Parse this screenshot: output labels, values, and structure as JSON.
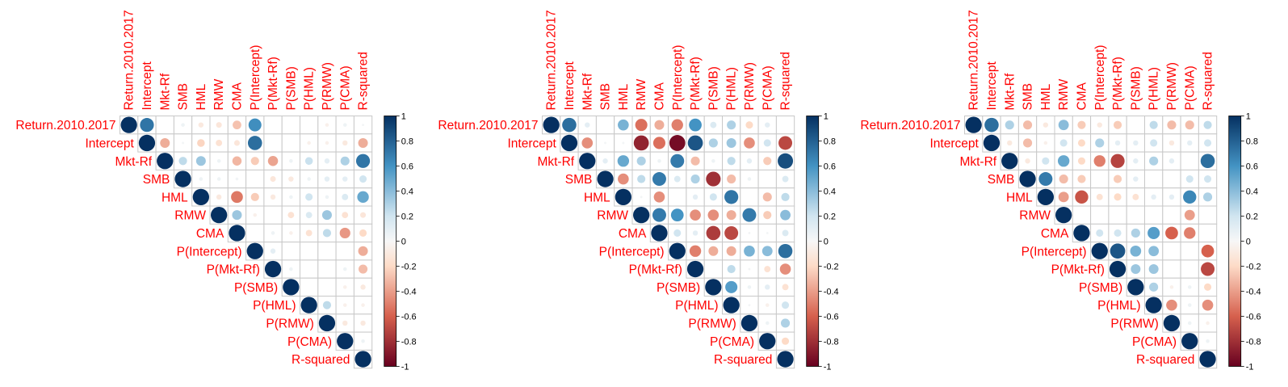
{
  "colorbar": {
    "ticks": [
      "1",
      "0.8",
      "0.6",
      "0.4",
      "0.2",
      "0",
      "-0.2",
      "-0.4",
      "-0.6",
      "-0.8",
      "-1"
    ],
    "colors": {
      "neg_end": "#67001f",
      "neg_mid": "#d6604d",
      "neg_light": "#fddbc7",
      "zero": "#f7f7f7",
      "pos_light": "#d1e5f0",
      "pos_mid": "#4393c3",
      "pos_end": "#053061"
    }
  },
  "label_color": "#ff0000",
  "chart_data": [
    {
      "type": "heatmap",
      "variables": [
        "Return.2010.2017",
        "Intercept",
        "Mkt-Rf",
        "SMB",
        "HML",
        "RMW",
        "CMA",
        "P(Intercept)",
        "P(Mkt-Rf)",
        "P(SMB)",
        "P(HML)",
        "P(RMW)",
        "P(CMA)",
        "R-squared"
      ],
      "layout": "upper-triangle",
      "values": [
        [
          1,
          0.72,
          0,
          0.05,
          -0.1,
          -0.12,
          -0.28,
          0.62,
          0,
          0,
          0,
          -0.05,
          0.05,
          0.02
        ],
        [
          0,
          1,
          -0.35,
          0.02,
          -0.22,
          -0.15,
          -0.12,
          0.75,
          0,
          0,
          -0.05,
          -0.05,
          -0.1,
          -0.35
        ],
        [
          0,
          0,
          1,
          0.25,
          0.35,
          0.05,
          -0.32,
          -0.25,
          -0.38,
          0.05,
          0.22,
          0.1,
          0.3,
          0.72
        ],
        [
          0,
          0,
          0,
          1,
          0.05,
          0.05,
          0.03,
          0,
          -0.12,
          -0.1,
          0.05,
          0.1,
          0.1,
          0.2
        ],
        [
          0,
          0,
          0,
          0,
          1,
          -0.1,
          -0.52,
          -0.25,
          -0.1,
          0.05,
          0.2,
          0.05,
          0.15,
          0.5
        ],
        [
          0,
          0,
          0,
          0,
          0,
          1,
          0.35,
          -0.05,
          0,
          -0.15,
          0.15,
          0.35,
          -0.15,
          -0.12
        ],
        [
          0,
          0,
          0,
          0,
          0,
          0,
          1,
          0,
          0.05,
          -0.05,
          -0.15,
          0.25,
          -0.42,
          -0.2
        ],
        [
          0,
          0,
          0,
          0,
          0,
          0,
          0,
          1,
          0.1,
          0,
          0,
          0,
          0,
          -0.35
        ],
        [
          0,
          0,
          0,
          0,
          0,
          0,
          0,
          0,
          1,
          0.05,
          0,
          0,
          0.05,
          -0.3
        ],
        [
          0,
          0,
          0,
          0,
          0,
          0,
          0,
          0,
          0,
          1,
          0,
          0,
          -0.05,
          -0.1
        ],
        [
          0,
          0,
          0,
          0,
          0,
          0,
          0,
          0,
          0,
          0,
          1,
          0.25,
          -0.05,
          -0.05
        ],
        [
          0,
          0,
          0,
          0,
          0,
          0,
          0,
          0,
          0,
          0,
          0,
          1,
          -0.1,
          -0.1
        ],
        [
          0,
          0,
          0,
          0,
          0,
          0,
          0,
          0,
          0,
          0,
          0,
          0,
          1,
          0.05
        ],
        [
          0,
          0,
          0,
          0,
          0,
          0,
          0,
          0,
          0,
          0,
          0,
          0,
          0,
          1
        ]
      ]
    },
    {
      "type": "heatmap",
      "variables": [
        "Return.2010.2017",
        "Intercept",
        "Mkt-Rf",
        "SMB",
        "HML",
        "RMW",
        "CMA",
        "P(Intercept)",
        "P(Mkt-Rf)",
        "P(SMB)",
        "P(HML)",
        "P(RMW)",
        "P(CMA)",
        "R-squared"
      ],
      "layout": "upper-triangle",
      "values": [
        [
          1,
          0.75,
          0.1,
          0,
          0.45,
          -0.55,
          -0.35,
          -0.5,
          0.6,
          0.15,
          0.3,
          -0.2,
          0.1,
          0
        ],
        [
          0,
          1,
          -0.45,
          0.02,
          0.02,
          -0.85,
          -0.55,
          -0.95,
          0.85,
          0.3,
          0.35,
          -0.45,
          0.2,
          -0.7
        ],
        [
          0,
          0,
          1,
          0.1,
          0.5,
          0.3,
          0.05,
          0.7,
          -0.3,
          0.05,
          0.25,
          0.1,
          -0.25,
          0.88
        ],
        [
          0,
          0,
          0,
          1,
          -0.45,
          0.25,
          0.7,
          0.15,
          0.3,
          -0.8,
          -0.3,
          0.05,
          0,
          0.15
        ],
        [
          0,
          0,
          0,
          0,
          1,
          0.02,
          -0.45,
          0,
          0.1,
          0.2,
          0.72,
          0,
          -0.3,
          0.25
        ],
        [
          0,
          0,
          0,
          0,
          0,
          1,
          0.7,
          0.6,
          -0.45,
          -0.45,
          -0.35,
          0.7,
          -0.25,
          0.4
        ],
        [
          0,
          0,
          0,
          0,
          0,
          0,
          1,
          0.2,
          0.1,
          -0.75,
          -0.7,
          0.02,
          0.02,
          0.15
        ],
        [
          0,
          0,
          0,
          0,
          0,
          0,
          0,
          1,
          -0.5,
          -0.35,
          -0.35,
          0.45,
          0.4,
          0.75
        ],
        [
          0,
          0,
          0,
          0,
          0,
          0,
          0,
          0,
          1,
          0,
          0.25,
          0.02,
          -0.15,
          -0.45
        ],
        [
          0,
          0,
          0,
          0,
          0,
          0,
          0,
          0,
          0,
          1,
          0.55,
          0.05,
          0.1,
          -0.15
        ],
        [
          0,
          0,
          0,
          0,
          0,
          0,
          0,
          0,
          0,
          0,
          1,
          0.02,
          -0.05,
          0.2
        ],
        [
          0,
          0,
          0,
          0,
          0,
          0,
          0,
          0,
          0,
          0,
          0,
          1,
          0.05,
          0.3
        ],
        [
          0,
          0,
          0,
          0,
          0,
          0,
          0,
          0,
          0,
          0,
          0,
          0,
          1,
          -0.2
        ],
        [
          0,
          0,
          0,
          0,
          0,
          0,
          0,
          0,
          0,
          0,
          0,
          0,
          0,
          1
        ]
      ]
    },
    {
      "type": "heatmap",
      "variables": [
        "Return.2010.2017",
        "Intercept",
        "Mkt-Rf",
        "SMB",
        "HML",
        "RMW",
        "CMA",
        "P(Intercept)",
        "P(Mkt-Rf)",
        "P(SMB)",
        "P(HML)",
        "P(RMW)",
        "P(CMA)",
        "R-squared"
      ],
      "layout": "upper-triangle",
      "values": [
        [
          1,
          0.75,
          0.3,
          -0.3,
          -0.1,
          0.4,
          -0.25,
          -0.1,
          -0.25,
          0,
          0.25,
          -0.3,
          -0.3,
          0.25
        ],
        [
          0,
          1,
          -0.1,
          -0.3,
          -0.05,
          0.2,
          -0.2,
          0.3,
          0.1,
          0.1,
          0.2,
          -0.1,
          0.1,
          0.2
        ],
        [
          0,
          0,
          1,
          -0.1,
          0.2,
          0.5,
          -0.2,
          -0.5,
          -0.72,
          0.1,
          0.3,
          0.1,
          0,
          0.75
        ],
        [
          0,
          0,
          0,
          1,
          0.7,
          -0.3,
          -0.25,
          0,
          -0.25,
          0.1,
          0,
          0,
          0.2,
          0.2
        ],
        [
          0,
          0,
          0,
          0,
          1,
          -0.4,
          -0.65,
          -0.15,
          -0.2,
          -0.15,
          0.1,
          0.1,
          0.65,
          0.3
        ],
        [
          0,
          0,
          0,
          0,
          0,
          1,
          0,
          0,
          0,
          0,
          0,
          0,
          -0.4,
          0
        ],
        [
          0,
          0,
          0,
          0,
          0,
          0,
          1,
          0.2,
          0.2,
          0.3,
          0.55,
          -0.6,
          -0.5,
          0
        ],
        [
          0,
          0,
          0,
          0,
          0,
          0,
          0,
          1,
          0.85,
          0.45,
          0.4,
          0,
          0,
          -0.6
        ],
        [
          0,
          0,
          0,
          0,
          0,
          0,
          0,
          0,
          1,
          0.35,
          0.35,
          0,
          0,
          -0.7
        ],
        [
          0,
          0,
          0,
          0,
          0,
          0,
          0,
          0,
          0,
          1,
          0.3,
          -0.05,
          0.05,
          -0.2
        ],
        [
          0,
          0,
          0,
          0,
          0,
          0,
          0,
          0,
          0,
          0,
          1,
          -0.45,
          0.05,
          -0.45
        ],
        [
          0,
          0,
          0,
          0,
          0,
          0,
          0,
          0,
          0,
          0,
          0,
          1,
          0.05,
          -0.05
        ],
        [
          0,
          0,
          0,
          0,
          0,
          0,
          0,
          0,
          0,
          0,
          0,
          0,
          1,
          0.05
        ],
        [
          0,
          0,
          0,
          0,
          0,
          0,
          0,
          0,
          0,
          0,
          0,
          0,
          0,
          1
        ]
      ]
    }
  ]
}
